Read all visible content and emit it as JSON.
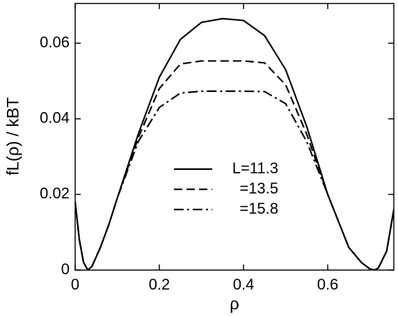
{
  "chart_data": {
    "type": "line",
    "x_label": "ρ",
    "y_label": "fL(ρ) / kBT",
    "x": [
      0,
      0.01,
      0.02,
      0.03,
      0.04,
      0.06,
      0.08,
      0.1,
      0.15,
      0.2,
      0.25,
      0.3,
      0.35,
      0.4,
      0.45,
      0.5,
      0.55,
      0.6,
      0.65,
      0.68,
      0.7,
      0.71,
      0.72,
      0.74,
      0.757
    ],
    "series": [
      {
        "name": "L=11.3",
        "color": "#000000",
        "dash": "solid",
        "values": [
          0.018,
          0.008,
          0.002,
          0.0,
          0.001,
          0.006,
          0.012,
          0.019,
          0.036,
          0.051,
          0.061,
          0.0655,
          0.0665,
          0.066,
          0.062,
          0.053,
          0.038,
          0.02,
          0.006,
          0.002,
          0.0003,
          0.0,
          0.0005,
          0.005,
          0.016
        ]
      },
      {
        "name": "=13.5",
        "color": "#000000",
        "dash": "dashed",
        "values": [
          0.018,
          0.008,
          0.002,
          0.0,
          0.001,
          0.006,
          0.012,
          0.019,
          0.035,
          0.048,
          0.0545,
          0.0553,
          0.0553,
          0.0553,
          0.0548,
          0.049,
          0.036,
          0.02,
          0.006,
          0.002,
          0.0003,
          0.0,
          0.0005,
          0.005,
          0.016
        ]
      },
      {
        "name": "=15.8",
        "color": "#000000",
        "dash": "dashdot",
        "values": [
          0.018,
          0.008,
          0.002,
          0.0,
          0.001,
          0.006,
          0.012,
          0.019,
          0.034,
          0.043,
          0.0468,
          0.0473,
          0.0473,
          0.0473,
          0.0472,
          0.044,
          0.034,
          0.02,
          0.006,
          0.002,
          0.0003,
          0.0,
          0.0005,
          0.005,
          0.016
        ]
      }
    ],
    "xlim": [
      0,
      0.757
    ],
    "ylim": [
      0,
      0.0705
    ],
    "xticks": [
      0,
      0.2,
      0.4,
      0.6
    ],
    "yticks": [
      0,
      0.02,
      0.04,
      0.06
    ],
    "grid": false
  }
}
